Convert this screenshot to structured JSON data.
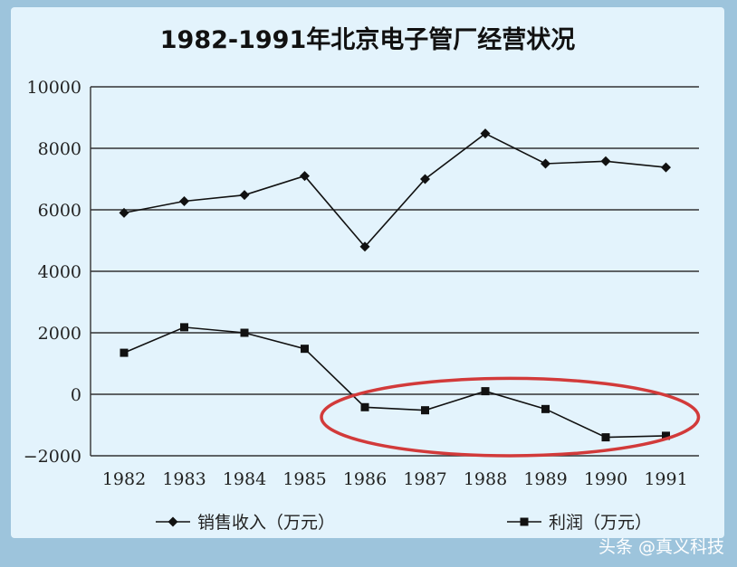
{
  "chart_data": {
    "type": "line",
    "title": "1982-1991年北京电子管厂经营状况",
    "x": [
      "1982",
      "1983",
      "1984",
      "1985",
      "1986",
      "1987",
      "1988",
      "1989",
      "1990",
      "1991"
    ],
    "series": [
      {
        "name": "销售收入（万元）",
        "marker": "diamond",
        "values": [
          5900,
          6280,
          6480,
          7100,
          4800,
          7000,
          8480,
          7500,
          7580,
          7380
        ]
      },
      {
        "name": "利润（万元）",
        "marker": "square",
        "values": [
          1350,
          2180,
          2000,
          1480,
          -420,
          -520,
          100,
          -480,
          -1400,
          -1350
        ]
      }
    ],
    "ylim": [
      -2000,
      10000
    ],
    "yticks": [
      "10000",
      "8000",
      "6000",
      "4000",
      "2000",
      "0",
      "−2000"
    ],
    "ytick_values": [
      10000,
      8000,
      6000,
      4000,
      2000,
      0,
      -2000
    ],
    "grid": true,
    "legend_position": "bottom",
    "annotation": {
      "type": "ellipse",
      "color": "#d23a3a",
      "x_range": [
        "1986",
        "1991"
      ],
      "y_range": [
        -2000,
        400
      ]
    }
  },
  "watermark": "头条 @真义科技",
  "colors": {
    "line": "#111111",
    "grid": "#333333",
    "highlight": "#d23a3a"
  }
}
